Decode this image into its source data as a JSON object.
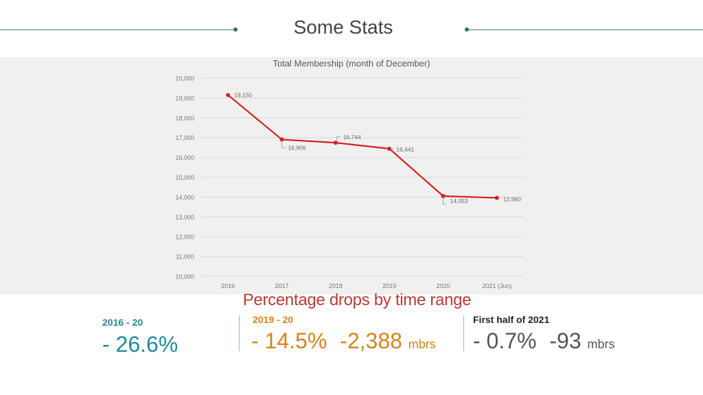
{
  "colors": {
    "accent": "#2d6f79",
    "series_line": "#d42020",
    "teal_text": "#1f8a9a",
    "orange_text": "#d9821c",
    "red_title": "#b83b35",
    "chart_bg": "#f0f0f0"
  },
  "header": {
    "title": "Some Stats"
  },
  "chart_data": {
    "type": "line",
    "title": "Total Membership (month of December)",
    "categories": [
      "2016",
      "2017",
      "2018",
      "2019",
      "2020",
      "2021 (Jun)"
    ],
    "series": [
      {
        "name": "Total Membership",
        "values": [
          19150,
          16906,
          16744,
          16441,
          14053,
          13960
        ]
      }
    ],
    "data_labels": [
      "19,150",
      "16,906",
      "16,744",
      "16,441",
      "14,053",
      "13,960"
    ],
    "ylim": [
      10000,
      20000
    ],
    "yticks": [
      10000,
      11000,
      12000,
      13000,
      14000,
      15000,
      16000,
      17000,
      18000,
      19000,
      20000
    ],
    "ytick_labels": [
      "10,000",
      "11,000",
      "12,000",
      "13,000",
      "14,000",
      "15,000",
      "16,000",
      "17,000",
      "18,000",
      "19,000",
      "20,000"
    ],
    "grid": true,
    "xlabel": "",
    "ylabel": ""
  },
  "drops": {
    "title": "Percentage drops by time range",
    "ranges": [
      {
        "label": "2016 - 20",
        "percent": "- 26.6%",
        "members": "",
        "unit": ""
      },
      {
        "label": "2019 - 20",
        "percent": "- 14.5%",
        "members": "-2,388",
        "unit": "mbrs"
      },
      {
        "label": "First half of 2021",
        "percent": "- 0.7%",
        "members": "-93",
        "unit": "mbrs"
      }
    ]
  }
}
